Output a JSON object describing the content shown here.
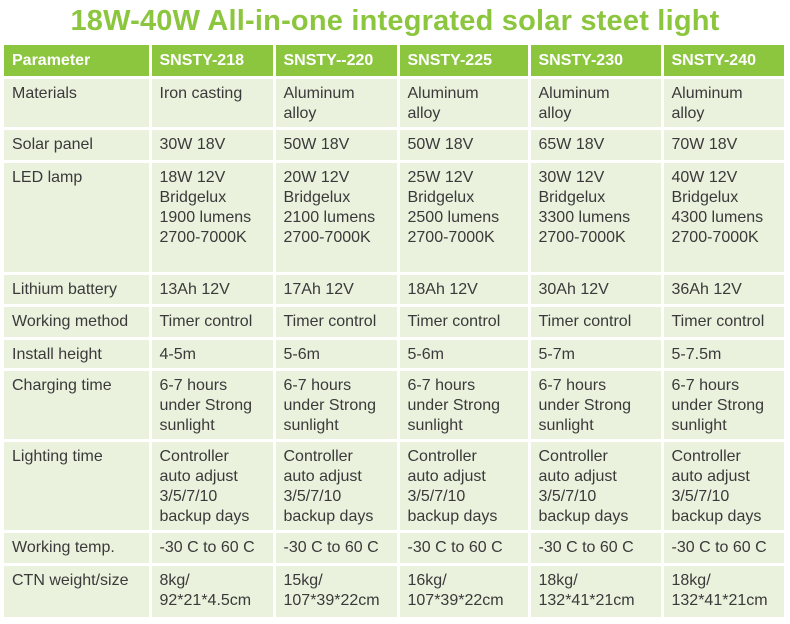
{
  "title": "18W-40W All-in-one integrated solar steet light",
  "colors": {
    "accent_green": "#8cc63f",
    "row_bg": "#eaf1dd",
    "text": "#3a3a3a"
  },
  "table": {
    "headers": [
      "Parameter",
      "SNSTY-218",
      "SNSTY--220",
      "SNSTY-225",
      "SNSTY-230",
      "SNSTY-240"
    ],
    "rows": [
      {
        "label": "Materials",
        "cells": [
          "Iron casting",
          "Aluminum\nalloy",
          "Aluminum\nalloy",
          "Aluminum\nalloy",
          "Aluminum\nalloy"
        ]
      },
      {
        "label": "Solar panel",
        "cells": [
          "30W 18V",
          "50W 18V",
          "50W 18V",
          "65W 18V",
          "70W 18V"
        ]
      },
      {
        "label": "LED lamp",
        "cells": [
          "18W 12V\nBridgelux\n1900 lumens\n2700-7000K",
          "20W 12V\nBridgelux\n2100 lumens\n2700-7000K",
          "25W 12V\nBridgelux\n2500 lumens\n2700-7000K",
          "30W 12V\nBridgelux\n3300 lumens\n2700-7000K",
          "40W 12V\nBridgelux\n4300 lumens\n2700-7000K"
        ]
      },
      {
        "label": "Lithium battery",
        "cells": [
          "13Ah 12V",
          "17Ah 12V",
          "18Ah 12V",
          "30Ah 12V",
          "36Ah 12V"
        ]
      },
      {
        "label": "Working method",
        "cells": [
          "Timer control",
          "Timer control",
          "Timer control",
          "Timer control",
          "Timer control"
        ]
      },
      {
        "label": "Install height",
        "cells": [
          "4-5m",
          "5-6m",
          "5-6m",
          "5-7m",
          "5-7.5m"
        ]
      },
      {
        "label": "Charging time",
        "cells": [
          "6-7 hours\nunder Strong\nsunlight",
          "6-7 hours\nunder Strong\nsunlight",
          "6-7 hours\nunder Strong\nsunlight",
          "6-7 hours\nunder Strong\nsunlight",
          "6-7 hours\nunder Strong\nsunlight"
        ]
      },
      {
        "label": "Lighting time",
        "cells": [
          "Controller\nauto adjust\n3/5/7/10\nbackup days",
          "Controller\nauto adjust\n3/5/7/10\nbackup days",
          "Controller\nauto adjust\n3/5/7/10\nbackup days",
          "Controller\nauto adjust\n3/5/7/10\nbackup days",
          "Controller\nauto adjust\n3/5/7/10\nbackup days"
        ]
      },
      {
        "label": "Working temp.",
        "cells": [
          "-30 C to 60 C",
          "-30 C to 60 C",
          "-30 C to 60 C",
          "-30 C to 60 C",
          "-30 C to 60 C"
        ]
      },
      {
        "label": "CTN weight/size",
        "cells": [
          "8kg/\n92*21*4.5cm",
          "15kg/\n107*39*22cm",
          "16kg/\n107*39*22cm",
          "18kg/\n132*41*21cm",
          "18kg/\n132*41*21cm"
        ]
      }
    ]
  }
}
